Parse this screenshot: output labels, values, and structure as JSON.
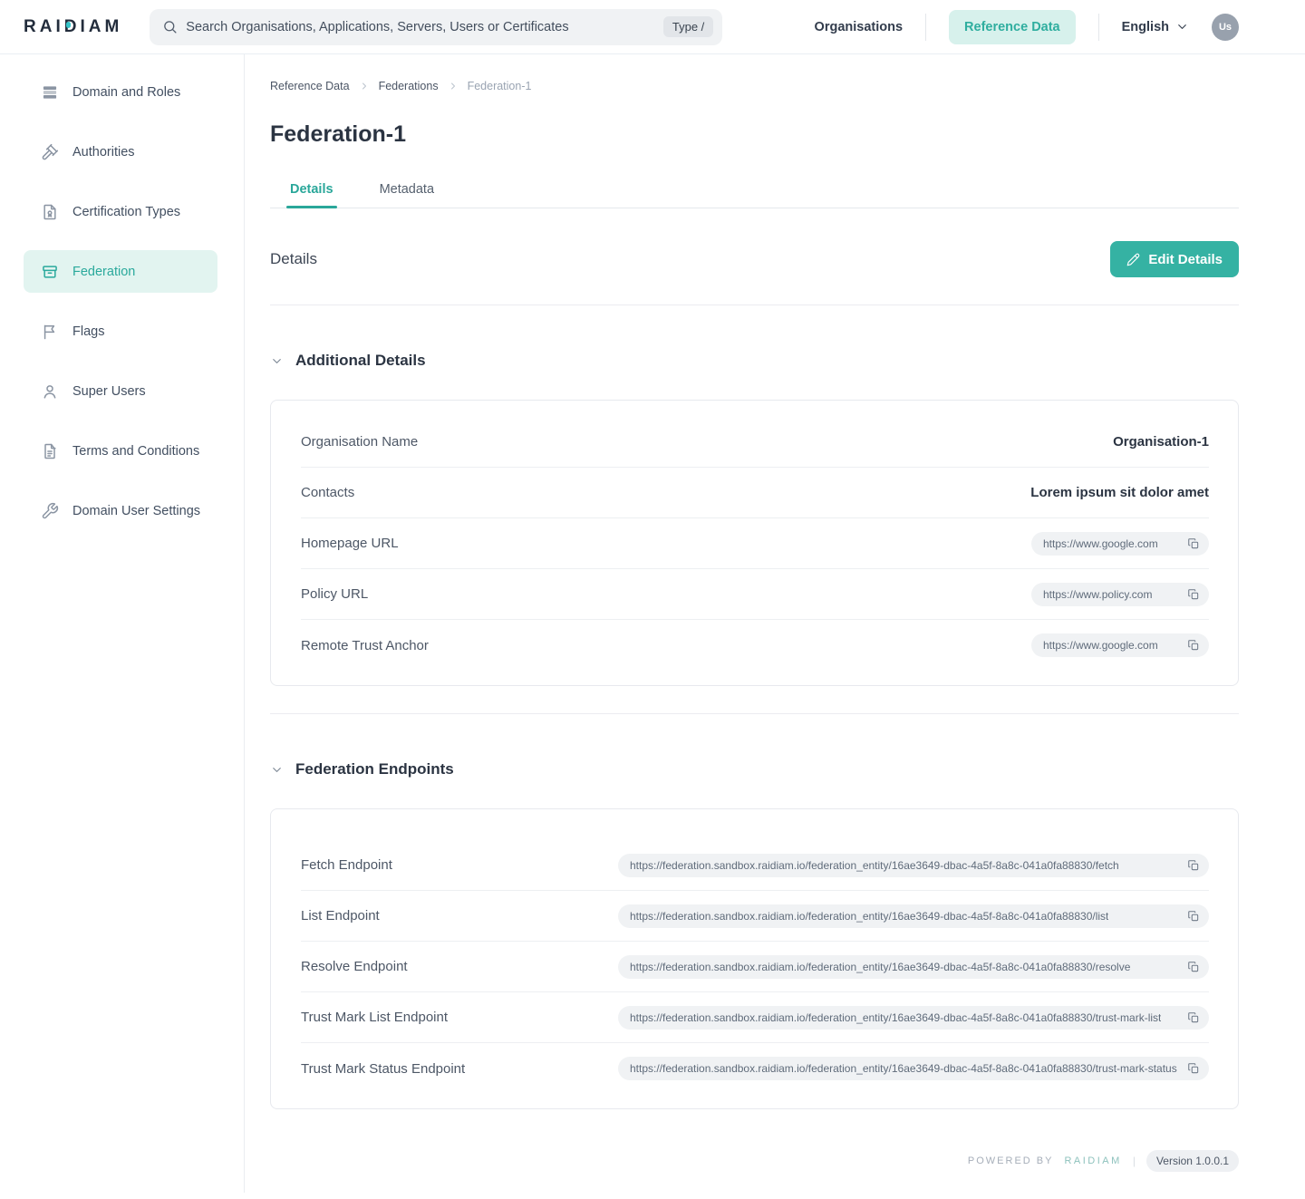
{
  "colors": {
    "accent": "#35b2a3",
    "accent_light_bg": "#d7f1ec",
    "sidebar_active_bg": "#e2f4f0",
    "text_dark": "#2b3442"
  },
  "header": {
    "logo": "RAIDIAM",
    "search": {
      "placeholder": "Search Organisations, Applications, Servers, Users or Certificates",
      "shortcut_hint": "Type /"
    },
    "nav": [
      {
        "label": "Organisations",
        "active": false
      },
      {
        "label": "Reference Data",
        "active": true
      }
    ],
    "language": "English",
    "avatar_initials": "Us"
  },
  "sidebar": {
    "items": [
      {
        "label": "Domain and Roles",
        "icon": "rows-icon",
        "active": false
      },
      {
        "label": "Authorities",
        "icon": "gavel-icon",
        "active": false
      },
      {
        "label": "Certification Types",
        "icon": "certificate-icon",
        "active": false
      },
      {
        "label": "Federation",
        "icon": "archive-icon",
        "active": true
      },
      {
        "label": "Flags",
        "icon": "flag-icon",
        "active": false
      },
      {
        "label": "Super Users",
        "icon": "user-icon",
        "active": false
      },
      {
        "label": "Terms and Conditions",
        "icon": "document-icon",
        "active": false
      },
      {
        "label": "Domain User Settings",
        "icon": "wrench-icon",
        "active": false
      }
    ]
  },
  "breadcrumb": [
    "Reference Data",
    "Federations",
    "Federation-1"
  ],
  "page": {
    "title": "Federation-1",
    "tabs": [
      {
        "label": "Details",
        "active": true
      },
      {
        "label": "Metadata",
        "active": false
      }
    ],
    "details_heading": "Details",
    "edit_button": "Edit Details"
  },
  "sections": {
    "additional_details": {
      "title": "Additional Details",
      "rows": [
        {
          "label": "Organisation Name",
          "value": "Organisation-1",
          "type": "text"
        },
        {
          "label": "Contacts",
          "value": "Lorem ipsum sit dolor amet",
          "type": "text"
        },
        {
          "label": "Homepage URL",
          "value": "https://www.google.com",
          "type": "url"
        },
        {
          "label": "Policy URL",
          "value": "https://www.policy.com",
          "type": "url"
        },
        {
          "label": "Remote Trust Anchor",
          "value": "https://www.google.com",
          "type": "url"
        }
      ]
    },
    "federation_endpoints": {
      "title": "Federation Endpoints",
      "rows": [
        {
          "label": "Fetch Endpoint",
          "value": "https://federation.sandbox.raidiam.io/federation_entity/16ae3649-dbac-4a5f-8a8c-041a0fa88830/fetch",
          "type": "url"
        },
        {
          "label": "List Endpoint",
          "value": "https://federation.sandbox.raidiam.io/federation_entity/16ae3649-dbac-4a5f-8a8c-041a0fa88830/list",
          "type": "url"
        },
        {
          "label": "Resolve Endpoint",
          "value": "https://federation.sandbox.raidiam.io/federation_entity/16ae3649-dbac-4a5f-8a8c-041a0fa88830/resolve",
          "type": "url"
        },
        {
          "label": "Trust Mark List Endpoint",
          "value": "https://federation.sandbox.raidiam.io/federation_entity/16ae3649-dbac-4a5f-8a8c-041a0fa88830/trust-mark-list",
          "type": "url"
        },
        {
          "label": "Trust Mark Status Endpoint",
          "value": "https://federation.sandbox.raidiam.io/federation_entity/16ae3649-dbac-4a5f-8a8c-041a0fa88830/trust-mark-status",
          "type": "url"
        }
      ]
    }
  },
  "footer": {
    "powered_by": "POWERED BY",
    "brand": "RAIDIAM",
    "separator": "|",
    "version": "Version 1.0.0.1"
  }
}
